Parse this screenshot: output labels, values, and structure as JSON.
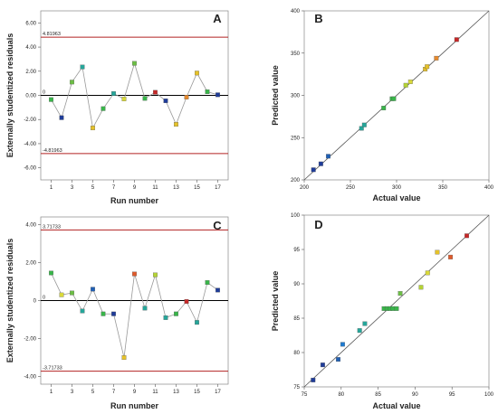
{
  "colors": {
    "limit": "#b22222",
    "line": "#999999",
    "axis": "#000000",
    "diag": "#555555"
  },
  "chart_data": [
    {
      "type": "line",
      "panel": "A",
      "xlabel": "Run number",
      "ylabel": "Externally studentized residuals",
      "xlim": [
        0,
        18
      ],
      "ylim": [
        -7,
        7
      ],
      "xticks": [
        "1",
        "3",
        "5",
        "7",
        "9",
        "11",
        "13",
        "15",
        "17"
      ],
      "yticks": [
        "6.00",
        "4.00",
        "2.00",
        "0.00",
        "-2.00",
        "-4.00",
        "-6.00"
      ],
      "limits": {
        "upper": 4.81963,
        "lower": -4.81963,
        "upper_label": "4.81963",
        "lower_label": "-4.81963",
        "zero_label": "0"
      },
      "x": [
        1,
        2,
        3,
        4,
        5,
        6,
        7,
        8,
        9,
        10,
        11,
        12,
        13,
        14,
        15,
        16,
        17
      ],
      "values": [
        -0.35,
        -1.85,
        1.1,
        2.35,
        -2.7,
        -1.1,
        0.15,
        -0.3,
        2.65,
        -0.25,
        0.25,
        -0.45,
        -2.4,
        -0.15,
        1.85,
        0.3,
        0.05
      ],
      "point_colors": [
        "#39b54a",
        "#1f3c99",
        "#6cbe45",
        "#26a69a",
        "#e6c229",
        "#39b54a",
        "#26a69a",
        "#d9d93a",
        "#6cbe45",
        "#39b54a",
        "#c62828",
        "#1f3c99",
        "#e6c229",
        "#e68a2e",
        "#e6c229",
        "#39b54a",
        "#1f3c99"
      ]
    },
    {
      "type": "scatter",
      "panel": "B",
      "xlabel": "Actual value",
      "ylabel": "Predicted value",
      "xlim": [
        200,
        400
      ],
      "ylim": [
        200,
        400
      ],
      "xticks": [
        "200",
        "250",
        "300",
        "350",
        "400"
      ],
      "yticks": [
        "400",
        "350",
        "300",
        "250",
        "200"
      ],
      "x": [
        210,
        218,
        226,
        262,
        265,
        286,
        295,
        297,
        310,
        315,
        331,
        333,
        343,
        365
      ],
      "y": [
        212,
        219,
        228,
        261,
        265,
        285,
        296,
        296,
        312,
        316,
        331,
        334,
        344,
        366
      ],
      "point_colors": [
        "#1f3c99",
        "#1f3c99",
        "#1f5fb4",
        "#26a69a",
        "#26a69a",
        "#39b54a",
        "#39b54a",
        "#39b54a",
        "#b5d334",
        "#d9d93a",
        "#e6c229",
        "#e6c229",
        "#e68a2e",
        "#c62828"
      ]
    },
    {
      "type": "line",
      "panel": "C",
      "xlabel": "Run number",
      "ylabel": "Externally studentized residuals",
      "xlim": [
        0,
        18
      ],
      "ylim": [
        -4.4,
        4.4
      ],
      "xticks": [
        "1",
        "3",
        "5",
        "7",
        "9",
        "11",
        "13",
        "15",
        "17"
      ],
      "yticks": [
        "4.00",
        "2.00",
        "0",
        "-2.00",
        "-4.00"
      ],
      "limits": {
        "upper": 3.71733,
        "lower": -3.71733,
        "upper_label": "3.71733",
        "lower_label": "-3.71733",
        "zero_label": "0"
      },
      "x": [
        1,
        2,
        3,
        4,
        5,
        6,
        7,
        8,
        9,
        10,
        11,
        12,
        13,
        14,
        15,
        16,
        17
      ],
      "values": [
        1.45,
        0.3,
        0.4,
        -0.55,
        0.6,
        -0.7,
        -0.7,
        -3.0,
        1.4,
        -0.4,
        1.35,
        -0.9,
        -0.7,
        -0.05,
        -1.15,
        0.95,
        0.55
      ],
      "point_colors": [
        "#39b54a",
        "#d9d93a",
        "#6cbe45",
        "#26a69a",
        "#1f5fb4",
        "#39b54a",
        "#1f3c99",
        "#e6c229",
        "#e05a2b",
        "#26a69a",
        "#b5d334",
        "#26a69a",
        "#39b54a",
        "#c62828",
        "#26a69a",
        "#39b54a",
        "#1f3c99"
      ]
    },
    {
      "type": "scatter",
      "panel": "D",
      "xlabel": "Actual value",
      "ylabel": "Predicted value",
      "xlim": [
        75,
        100
      ],
      "ylim": [
        75,
        100
      ],
      "xticks": [
        "75",
        "80",
        "85",
        "90",
        "95",
        "100"
      ],
      "yticks": [
        "100",
        "95",
        "90",
        "85",
        "80",
        "75"
      ],
      "x": [
        76.2,
        77.5,
        79.6,
        80.2,
        82.5,
        83.2,
        85.8,
        86.2,
        86.6,
        87,
        87.5,
        88,
        90.8,
        91.7,
        93,
        94.8,
        97
      ],
      "y": [
        76,
        78.2,
        79,
        81.2,
        83.2,
        84.2,
        86.4,
        86.4,
        86.4,
        86.4,
        86.4,
        88.6,
        89.5,
        91.6,
        94.6,
        93.9,
        97
      ],
      "point_colors": [
        "#1f3c99",
        "#1f3c99",
        "#1f5fb4",
        "#1f7bd1",
        "#26a69a",
        "#26a69a",
        "#39b54a",
        "#39b54a",
        "#39b54a",
        "#39b54a",
        "#39b54a",
        "#6cbe45",
        "#b5d334",
        "#d9d93a",
        "#e6c229",
        "#e05a2b",
        "#c62828"
      ]
    }
  ]
}
